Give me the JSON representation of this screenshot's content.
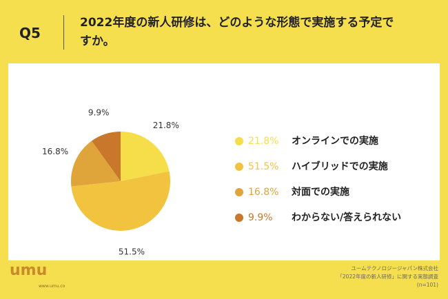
{
  "question": "Q5",
  "chart_data": {
    "type": "pie",
    "title": "2022年度の新人研修は、どのような形態で実施する予定ですか。",
    "categories": [
      "オンラインでの実施",
      "ハイブリッドでの実施",
      "対面での実施",
      "わからない/答えられない"
    ],
    "values": [
      21.8,
      51.5,
      16.8,
      9.9
    ],
    "value_labels": [
      "21.8%",
      "51.5%",
      "16.8%",
      "9.9%"
    ],
    "colors": [
      "#f5de4a",
      "#f1c33e",
      "#dfa43a",
      "#c8772b"
    ],
    "legend": "right"
  },
  "footer": {
    "logo": "umu",
    "url": "www.umu.co",
    "source": [
      "ユームテクノロジージャパン株式会社",
      "「2022年度の新人研修」に関する実態調査",
      "(n=101)"
    ]
  }
}
